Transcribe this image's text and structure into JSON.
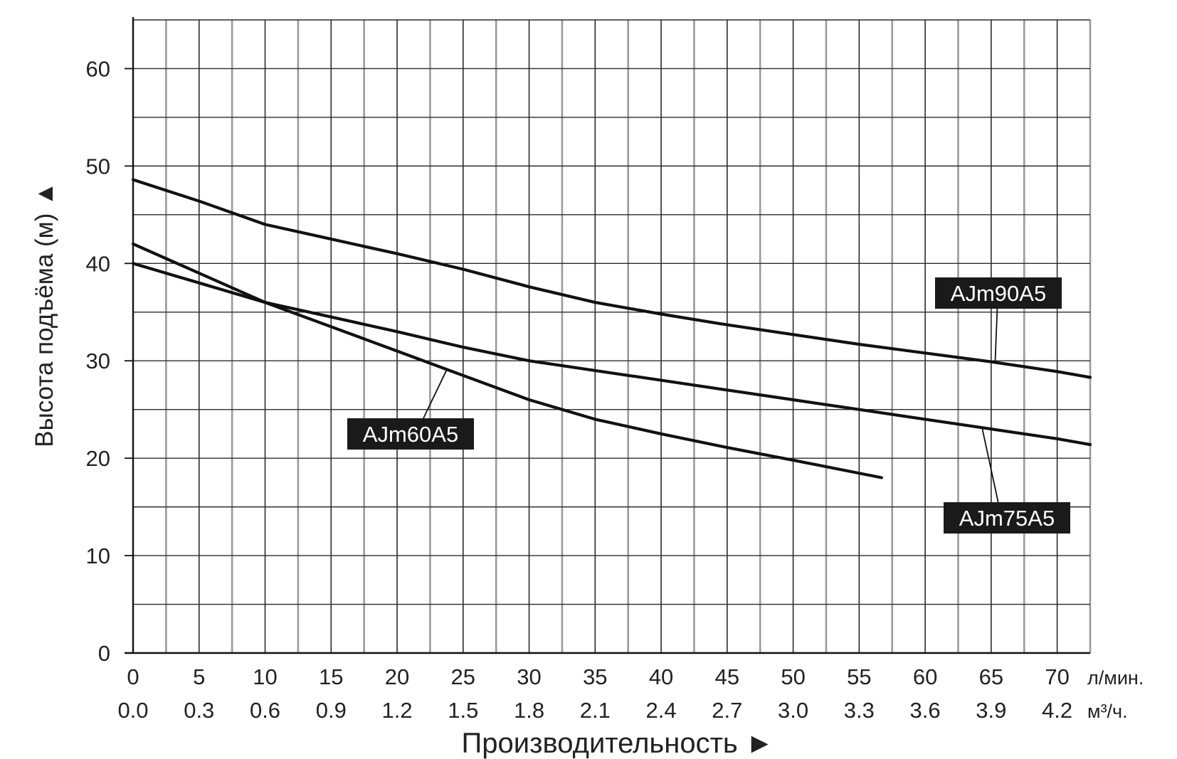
{
  "chart_data": {
    "type": "line",
    "ylabel": "Высота подъёма (м) ▲",
    "xlabel": "Производительность ►",
    "x_unit_primary": "л/мин.",
    "x_unit_secondary": "м³/ч.",
    "xlim": [
      0,
      72.5
    ],
    "ylim": [
      0,
      65
    ],
    "x_ticks_primary": [
      "0",
      "5",
      "10",
      "15",
      "20",
      "25",
      "30",
      "35",
      "40",
      "45",
      "50",
      "55",
      "60",
      "65",
      "70"
    ],
    "x_ticks_secondary": [
      "0.0",
      "0.3",
      "0.6",
      "0.9",
      "1.2",
      "1.5",
      "1.8",
      "2.1",
      "2.4",
      "2.7",
      "3.0",
      "3.3",
      "3.6",
      "3.9",
      "4.2"
    ],
    "y_ticks": [
      "0",
      "10",
      "20",
      "30",
      "40",
      "50",
      "60"
    ],
    "grid": true,
    "series": [
      {
        "name": "AJm90A5",
        "x": [
          0,
          5,
          10,
          15,
          20,
          25,
          30,
          35,
          40,
          45,
          50,
          55,
          60,
          65,
          70,
          72.5
        ],
        "y": [
          48.6,
          46.4,
          44,
          42.5,
          41,
          39.4,
          37.6,
          36,
          34.8,
          33.7,
          32.7,
          31.7,
          30.8,
          29.9,
          28.9,
          28.3
        ]
      },
      {
        "name": "AJm75A5",
        "x": [
          0,
          5,
          10,
          15,
          20,
          25,
          30,
          35,
          40,
          45,
          50,
          55,
          60,
          65,
          70,
          72.5
        ],
        "y": [
          40,
          38,
          36,
          34.5,
          33,
          31.4,
          30,
          29,
          28,
          27,
          26,
          25,
          24,
          23,
          22,
          21.4
        ]
      },
      {
        "name": "AJm60A5",
        "x": [
          0,
          5,
          10,
          15,
          20,
          25,
          30,
          35,
          40,
          45,
          50,
          56.7
        ],
        "y": [
          42,
          39,
          36,
          33.5,
          31,
          28.5,
          26,
          24,
          22.5,
          21.1,
          19.8,
          18
        ]
      }
    ],
    "annotations": [
      {
        "text": "AJm90A5",
        "series": "AJm90A5"
      },
      {
        "text": "AJm75A5",
        "series": "AJm75A5"
      },
      {
        "text": "AJm60A5",
        "series": "AJm60A5"
      }
    ]
  }
}
